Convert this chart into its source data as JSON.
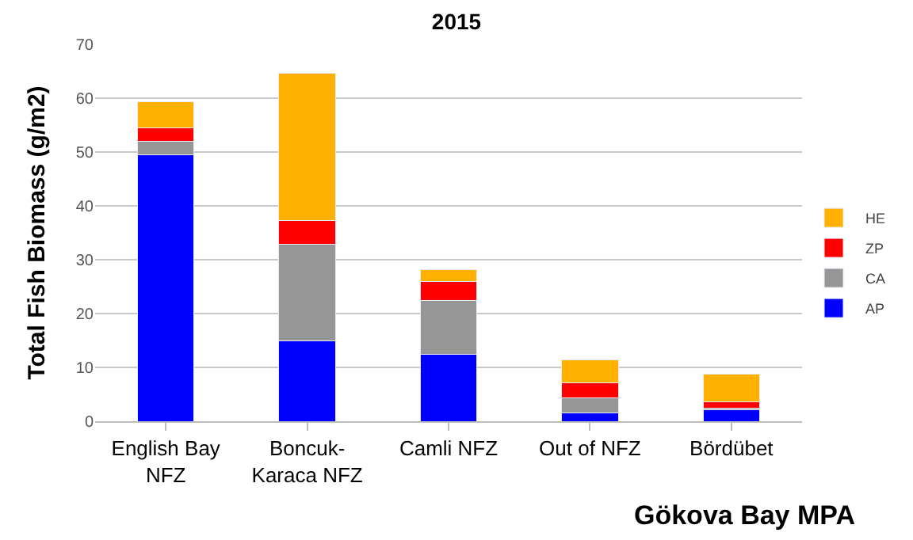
{
  "chart_data": {
    "type": "bar",
    "stacked": true,
    "title": "2015",
    "ylabel": "Total Fish Biomass (g/m2)",
    "categories": [
      "English Bay\nNFZ",
      "Boncuk-\nKaraca NFZ",
      "Camli NFZ",
      "Out of NFZ",
      "Bördübet"
    ],
    "series": [
      {
        "name": "AP",
        "color": "#0000ff",
        "values": [
          49.5,
          14.9,
          12.4,
          1.6,
          2.1
        ]
      },
      {
        "name": "CA",
        "color": "#969696",
        "values": [
          2.5,
          17.9,
          10.1,
          2.8,
          0.4
        ]
      },
      {
        "name": "ZP",
        "color": "#ff0000",
        "values": [
          2.5,
          4.5,
          3.5,
          2.7,
          1.1
        ]
      },
      {
        "name": "HE",
        "color": "#ffb000",
        "values": [
          4.9,
          27.3,
          2.1,
          4.3,
          5.1
        ]
      }
    ],
    "ylim": [
      0,
      70
    ],
    "yticks": [
      0,
      10,
      20,
      30,
      40,
      50,
      60,
      70
    ],
    "grid": "y",
    "legend": "right",
    "annotations": [
      "Gökova Bay MPA"
    ]
  }
}
